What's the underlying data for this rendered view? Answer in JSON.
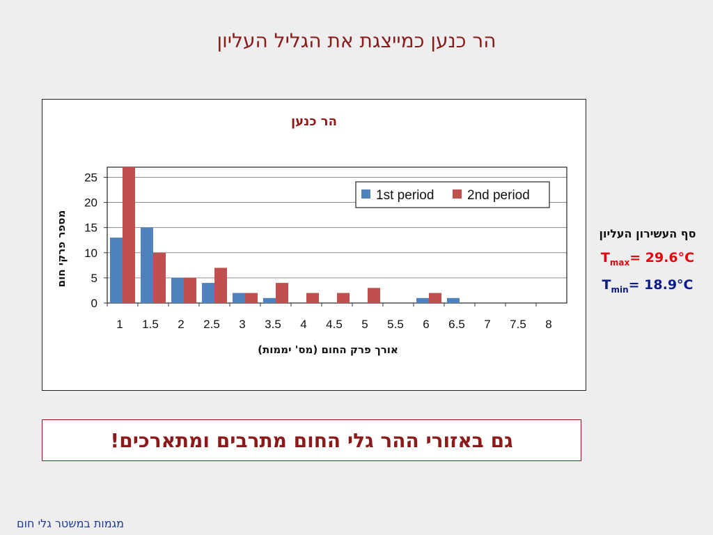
{
  "slide": {
    "title": "הר כנען כמייצגת את הגליל העליון",
    "callout": "גם באזורי ההר גלי החום מתרבים ומתארכים!",
    "footer": "מגמות במשטר גלי חום"
  },
  "side_panel": {
    "heading": "סף העשירון העליון",
    "tmax_symbol": "T",
    "tmax_sub": "max",
    "tmax_value": "= 29.6°C",
    "tmin_symbol": "T",
    "tmin_sub": "min",
    "tmin_value": "= 18.9°C",
    "tmax_color": "#e8000b",
    "tmin_color": "#0b1a8c"
  },
  "chart_data": {
    "type": "bar",
    "title": "הר כנען",
    "xlabel": "אורך פרק החום (מס' יממות)",
    "ylabel": "מספר פרקי חום",
    "categories": [
      "1",
      "1.5",
      "2",
      "2.5",
      "3",
      "3.5",
      "4",
      "4.5",
      "5",
      "5.5",
      "6",
      "6.5",
      "7",
      "7.5",
      "8"
    ],
    "series": [
      {
        "name": "1st period",
        "color": "#4f81bd",
        "values": [
          13,
          15,
          5,
          4,
          2,
          1,
          0,
          0,
          0,
          0,
          1,
          1,
          0,
          0,
          0
        ]
      },
      {
        "name": "2nd period",
        "color": "#c0504d",
        "values": [
          27,
          10,
          5,
          7,
          2,
          4,
          2,
          2,
          3,
          0,
          2,
          0,
          0,
          0,
          0
        ]
      }
    ],
    "ylim": [
      0,
      27
    ],
    "yticks": [
      0,
      5,
      10,
      15,
      20,
      25
    ],
    "grid": true,
    "legend_position": "top-right",
    "title_color": "#8b1a1a"
  }
}
